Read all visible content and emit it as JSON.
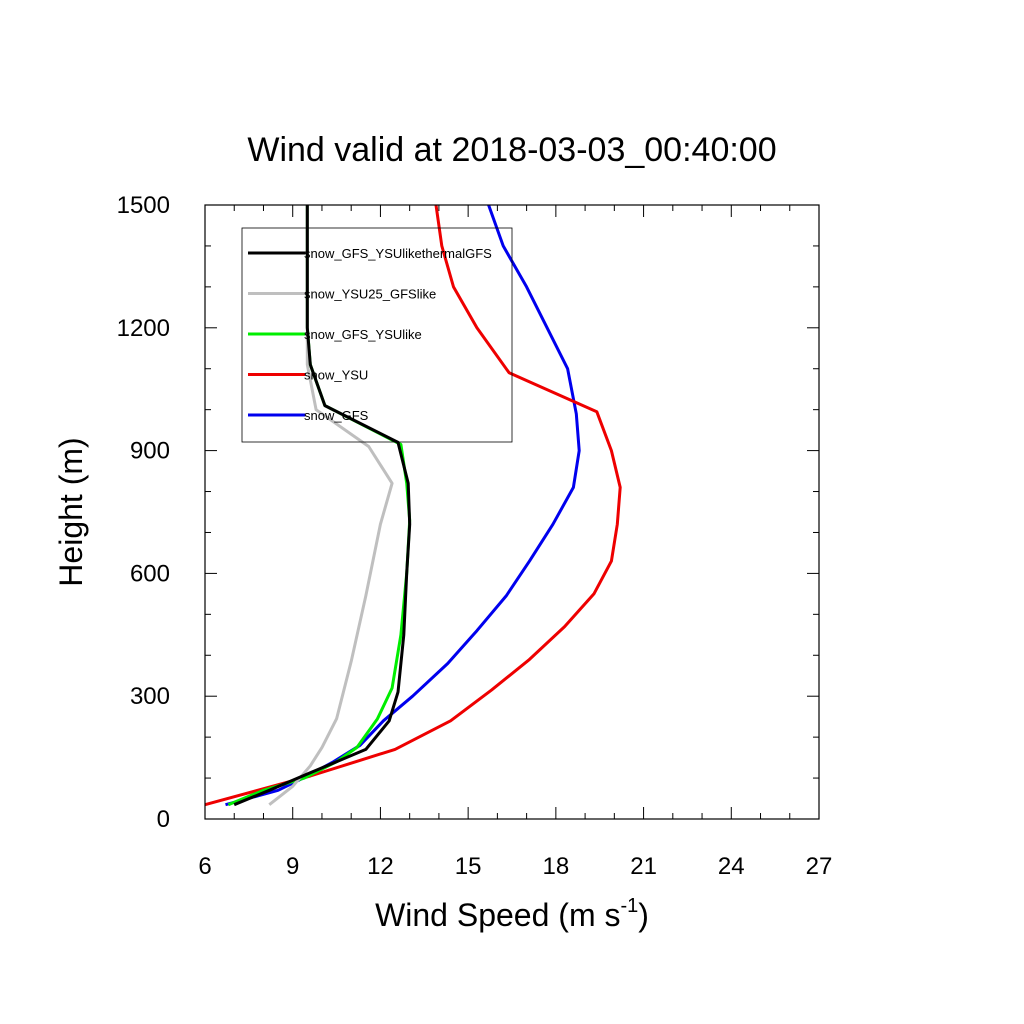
{
  "chart_data": {
    "type": "line",
    "title": "Wind valid at 2018-03-03_00:40:00",
    "xlabel": "Wind Speed (m s",
    "xlabel_sup": "-1",
    "xlabel_close": ")",
    "ylabel": "Height (m)",
    "xlim": [
      6,
      27
    ],
    "ylim": [
      0,
      1500
    ],
    "xticks": [
      6,
      9,
      12,
      15,
      18,
      21,
      24,
      27
    ],
    "yticks": [
      0,
      300,
      600,
      900,
      1200,
      1500
    ],
    "legend_position": "top-left",
    "series": [
      {
        "name": "snow_GFS_YSUlikethermalGFS",
        "color": "#000000",
        "points": [
          [
            7.0,
            35
          ],
          [
            8.2,
            70
          ],
          [
            9.5,
            110
          ],
          [
            10.5,
            140
          ],
          [
            11.5,
            170
          ],
          [
            12.3,
            240
          ],
          [
            12.6,
            310
          ],
          [
            12.8,
            450
          ],
          [
            12.9,
            600
          ],
          [
            13.0,
            720
          ],
          [
            12.95,
            820
          ],
          [
            12.6,
            920
          ],
          [
            10.1,
            1010
          ],
          [
            9.6,
            1110
          ],
          [
            9.5,
            1200
          ],
          [
            9.5,
            1300
          ],
          [
            9.5,
            1400
          ],
          [
            9.5,
            1500
          ]
        ]
      },
      {
        "name": "snow_YSU25_GFSlike",
        "color": "#bfbfbf",
        "points": [
          [
            8.2,
            35
          ],
          [
            9.0,
            80
          ],
          [
            9.6,
            130
          ],
          [
            10.0,
            175
          ],
          [
            10.5,
            245
          ],
          [
            11.0,
            385
          ],
          [
            11.5,
            545
          ],
          [
            12.0,
            720
          ],
          [
            12.4,
            820
          ],
          [
            11.6,
            910
          ],
          [
            9.8,
            1000
          ],
          [
            9.5,
            1110
          ],
          [
            9.5,
            1200
          ],
          [
            9.5,
            1300
          ],
          [
            9.5,
            1400
          ],
          [
            9.5,
            1500
          ]
        ]
      },
      {
        "name": "snow_GFS_YSUlike",
        "color": "#00ee00",
        "points": [
          [
            6.8,
            35
          ],
          [
            8.0,
            70
          ],
          [
            9.4,
            100
          ],
          [
            10.5,
            140
          ],
          [
            11.2,
            175
          ],
          [
            11.9,
            245
          ],
          [
            12.4,
            320
          ],
          [
            12.7,
            450
          ],
          [
            12.9,
            600
          ],
          [
            13.0,
            730
          ],
          [
            12.9,
            820
          ],
          [
            12.7,
            915
          ],
          [
            10.1,
            1010
          ],
          [
            9.6,
            1110
          ],
          [
            9.5,
            1200
          ],
          [
            9.5,
            1300
          ],
          [
            9.5,
            1400
          ],
          [
            9.5,
            1500
          ]
        ]
      },
      {
        "name": "snow_YSU",
        "color": "#ee0000",
        "points": [
          [
            6.0,
            35
          ],
          [
            9.6,
            105
          ],
          [
            12.5,
            170
          ],
          [
            14.4,
            240
          ],
          [
            15.8,
            315
          ],
          [
            17.1,
            390
          ],
          [
            18.3,
            470
          ],
          [
            19.3,
            550
          ],
          [
            19.9,
            630
          ],
          [
            20.1,
            720
          ],
          [
            20.2,
            810
          ],
          [
            19.9,
            900
          ],
          [
            19.4,
            995
          ],
          [
            16.4,
            1090
          ],
          [
            15.3,
            1200
          ],
          [
            14.5,
            1300
          ],
          [
            14.1,
            1400
          ],
          [
            13.9,
            1500
          ]
        ]
      },
      {
        "name": "snow_GFS",
        "color": "#0000ee",
        "points": [
          [
            6.7,
            35
          ],
          [
            8.5,
            70
          ],
          [
            9.5,
            105
          ],
          [
            10.4,
            140
          ],
          [
            11.3,
            180
          ],
          [
            12.1,
            240
          ],
          [
            13.1,
            300
          ],
          [
            14.3,
            380
          ],
          [
            15.3,
            460
          ],
          [
            16.3,
            545
          ],
          [
            17.1,
            630
          ],
          [
            17.9,
            720
          ],
          [
            18.6,
            810
          ],
          [
            18.8,
            900
          ],
          [
            18.7,
            990
          ],
          [
            18.4,
            1100
          ],
          [
            17.7,
            1200
          ],
          [
            17.0,
            1300
          ],
          [
            16.2,
            1400
          ],
          [
            15.7,
            1500
          ]
        ]
      }
    ]
  }
}
